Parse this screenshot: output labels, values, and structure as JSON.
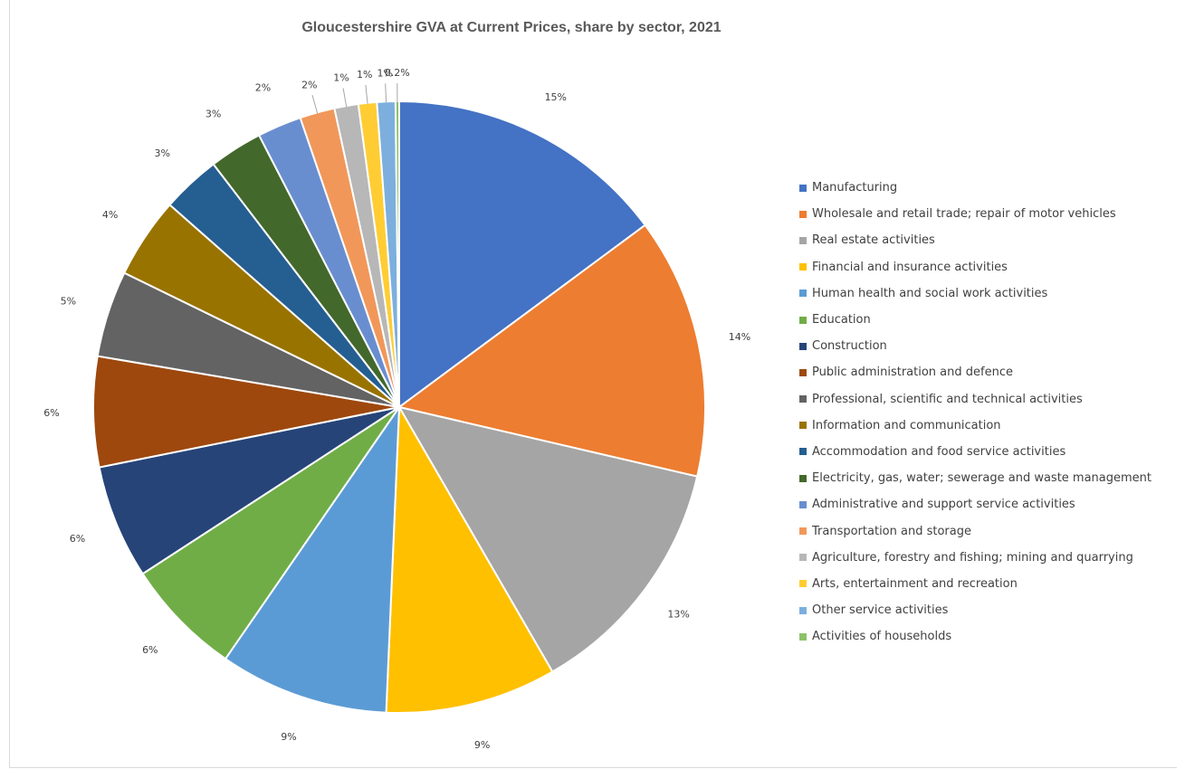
{
  "chart_data": {
    "type": "pie",
    "title": "Gloucestershire GVA at Current Prices, share by sector, 2021",
    "legend_position": "right",
    "slices": [
      {
        "name": "Manufacturing",
        "value": 15.3,
        "label": "15%",
        "color": "#4472c4"
      },
      {
        "name": "Wholesale and retail trade; repair of motor vehicles",
        "value": 14.2,
        "label": "14%",
        "color": "#ed7d31"
      },
      {
        "name": "Real estate activities",
        "value": 13.4,
        "label": "13%",
        "color": "#a5a5a5"
      },
      {
        "name": "Financial and insurance activities",
        "value": 9.3,
        "label": "9%",
        "color": "#ffc000"
      },
      {
        "name": "Human health and social work activities",
        "value": 9.2,
        "label": "9%",
        "color": "#5b9bd5"
      },
      {
        "name": "Education",
        "value": 6.4,
        "label": "6%",
        "color": "#70ad47"
      },
      {
        "name": "Construction",
        "value": 6.2,
        "label": "6%",
        "color": "#264478"
      },
      {
        "name": "Public administration and defence",
        "value": 6.0,
        "label": "6%",
        "color": "#9e480e"
      },
      {
        "name": "Professional, scientific and technical activities",
        "value": 4.7,
        "label": "5%",
        "color": "#636363"
      },
      {
        "name": "Information and communication",
        "value": 4.4,
        "label": "4%",
        "color": "#997300"
      },
      {
        "name": "Accommodation and food service activities",
        "value": 3.2,
        "label": "3%",
        "color": "#255e91"
      },
      {
        "name": "Electricity, gas, water; sewerage and waste management",
        "value": 2.9,
        "label": "3%",
        "color": "#43682b"
      },
      {
        "name": "Administrative and support service activities",
        "value": 2.4,
        "label": "2%",
        "color": "#698ed0"
      },
      {
        "name": "Transportation and storage",
        "value": 1.9,
        "label": "2%",
        "color": "#f1975a"
      },
      {
        "name": "Agriculture, forestry and fishing; mining and quarrying",
        "value": 1.3,
        "label": "1%",
        "color": "#b7b7b7"
      },
      {
        "name": "Arts, entertainment and recreation",
        "value": 1.0,
        "label": "1%",
        "color": "#ffcd33"
      },
      {
        "name": "Other service activities",
        "value": 1.0,
        "label": "1%",
        "color": "#7cafdd"
      },
      {
        "name": "Activities of households",
        "value": 0.2,
        "label": "0.2%",
        "color": "#8cc168"
      }
    ]
  }
}
